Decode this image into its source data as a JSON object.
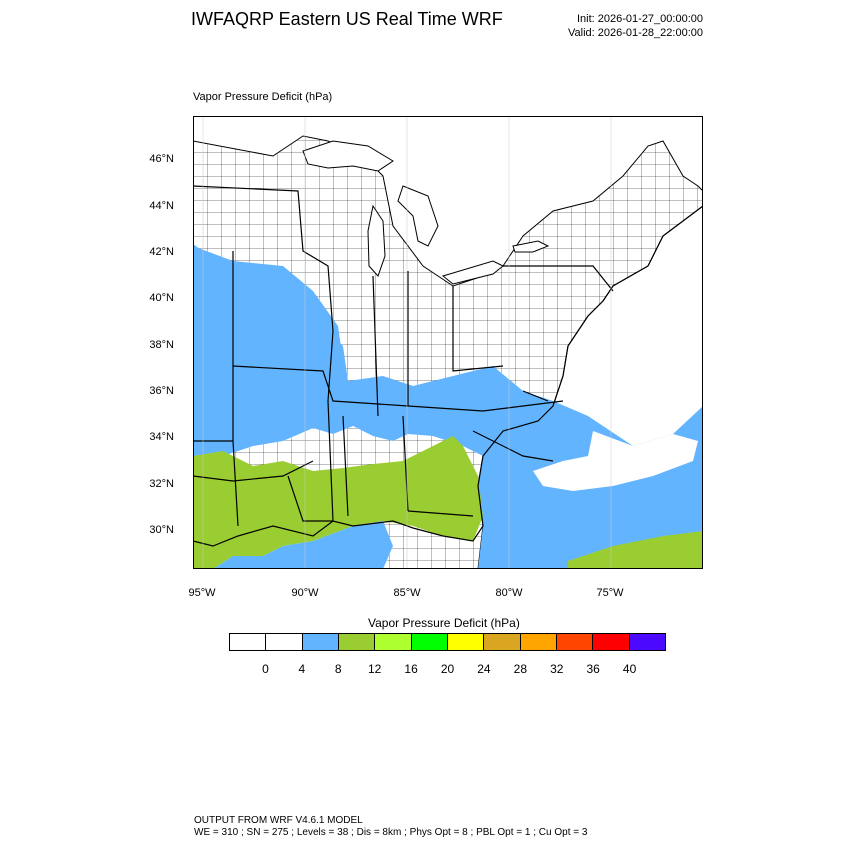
{
  "header": {
    "title": "IWFAQRP Eastern US Real Time WRF",
    "init": "Init: 2026-01-27_00:00:00",
    "valid": "Valid: 2026-01-28_22:00:00"
  },
  "map": {
    "field_title": "Vapor Pressure Deficit   (hPa)",
    "lat_labels": [
      "46°N",
      "44°N",
      "42°N",
      "40°N",
      "38°N",
      "36°N",
      "34°N",
      "32°N",
      "30°N"
    ],
    "lon_labels": [
      "95°W",
      "90°W",
      "85°W",
      "80°W",
      "75°W"
    ],
    "water_color": "#ffffff",
    "land_color": "#ffffff",
    "outline_color": "#000000"
  },
  "colorbar": {
    "title": "Vapor Pressure Deficit  (hPa)",
    "labels": [
      "0",
      "4",
      "8",
      "12",
      "16",
      "20",
      "24",
      "28",
      "32",
      "36",
      "40"
    ],
    "colors": [
      "#ffffff",
      "#ffffff",
      "#63b4ff",
      "#9acd32",
      "#adff2f",
      "#00ff00",
      "#ffff00",
      "#daa520",
      "#ffa500",
      "#ff4500",
      "#ff0000",
      "#4b0aff"
    ]
  },
  "footer": {
    "line1": "OUTPUT FROM WRF V4.6.1 MODEL",
    "line2": "WE = 310 ; SN = 275 ; Levels = 38 ; Dis = 8km ; Phys Opt = 8 ; PBL Opt = 1 ; Cu Opt = 3"
  }
}
